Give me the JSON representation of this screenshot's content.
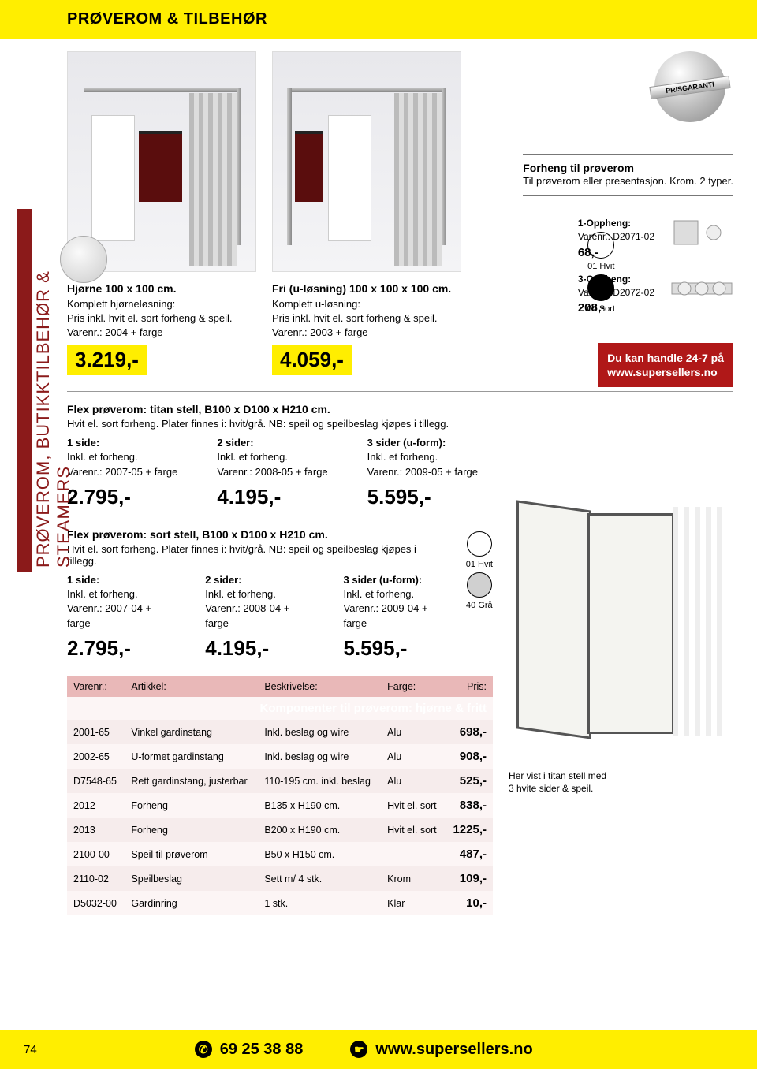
{
  "header": {
    "title": "PRØVEROM & TILBEHØR"
  },
  "sidebar_label": "PRØVEROM, BUTIKKTILBEHØR & STEAMERS",
  "colors": {
    "yellow": "#ffee00",
    "red": "#b01818",
    "darkred": "#8b1a1a",
    "table_header": "#e9b8b8"
  },
  "prisgaranti": "PRISGARANTI",
  "hero": {
    "left": {
      "title": "Hjørne 100 x 100 cm.",
      "line1": "Komplett hjørneløsning:",
      "line2": "Pris inkl. hvit el. sort forheng & speil.",
      "line3": "Varenr.: 2004 + farge",
      "price": "3.219,-"
    },
    "right": {
      "title": "Fri (u-løsning) 100 x 100 x 100 cm.",
      "line1": "Komplett u-løsning:",
      "line2": "Pris inkl. hvit el. sort forheng & speil.",
      "line3": "Varenr.: 2003 + farge",
      "price": "4.059,-"
    }
  },
  "forheng": {
    "title": "Forheng til prøverom",
    "desc": "Til prøverom eller presentasjon. Krom. 2 typer."
  },
  "swatches_top": {
    "a_label": "01 Hvit",
    "b_label": "04 Sort",
    "b_color": "#000000",
    "a_color": "#ffffff"
  },
  "oppheng": {
    "a": {
      "title": "1-Oppheng:",
      "sku": "Varenr.: D2071-02",
      "price": "68,-"
    },
    "b": {
      "title": "3-Oppheng:",
      "sku": "Varenr.: D2072-02",
      "price": "208,-"
    }
  },
  "cta": {
    "line1": "Du kan handle 24-7 på",
    "line2": "www.supersellers.no"
  },
  "flex_titan": {
    "title": "Flex prøverom: titan stell, B100 x D100 x H210 cm.",
    "desc": "Hvit el. sort forheng. Plater finnes i: hvit/grå. NB: speil og speilbeslag kjøpes i tillegg.",
    "cols": [
      {
        "lbl": "1 side:",
        "d1": "Inkl. et forheng.",
        "d2": "Varenr.: 2007-05 + farge",
        "price": "2.795,-"
      },
      {
        "lbl": "2 sider:",
        "d1": "Inkl. et forheng.",
        "d2": "Varenr.: 2008-05 + farge",
        "price": "4.195,-"
      },
      {
        "lbl": "3 sider (u-form):",
        "d1": "Inkl. et forheng.",
        "d2": "Varenr.: 2009-05 + farge",
        "price": "5.595,-"
      }
    ]
  },
  "flex_sort": {
    "title": "Flex prøverom: sort stell, B100 x D100 x H210 cm.",
    "desc": "Hvit el. sort forheng. Plater finnes i: hvit/grå. NB: speil og speilbeslag kjøpes i tillegg.",
    "cols": [
      {
        "lbl": "1 side:",
        "d1": "Inkl. et forheng.",
        "d2": "Varenr.: 2007-04 + farge",
        "price": "2.795,-"
      },
      {
        "lbl": "2 sider:",
        "d1": "Inkl. et forheng.",
        "d2": "Varenr.: 2008-04 + farge",
        "price": "4.195,-"
      },
      {
        "lbl": "3 sider (u-form):",
        "d1": "Inkl. et forheng.",
        "d2": "Varenr.: 2009-04 + farge",
        "price": "5.595,-"
      }
    ],
    "sw": {
      "a_label": "01 Hvit",
      "b_label": "40 Grå",
      "a_color": "#ffffff",
      "b_color": "#d0d0d0"
    }
  },
  "table": {
    "headers": [
      "Varenr.:",
      "Artikkel:",
      "Beskrivelse:",
      "Farge:",
      "Pris:"
    ],
    "section": "Komponenter til prøverom: hjørne & fritt",
    "rows": [
      [
        "2001-65",
        "Vinkel gardinstang",
        "Inkl. beslag og wire",
        "Alu",
        "698,-"
      ],
      [
        "2002-65",
        "U-formet gardinstang",
        "Inkl. beslag og wire",
        "Alu",
        "908,-"
      ],
      [
        "D7548-65",
        "Rett gardinstang, justerbar",
        "110-195 cm. inkl. beslag",
        "Alu",
        "525,-"
      ],
      [
        "2012",
        "Forheng",
        "B135 x H190 cm.",
        "Hvit el. sort",
        "838,-"
      ],
      [
        "2013",
        "Forheng",
        "B200 x H190 cm.",
        "Hvit el. sort",
        "1225,-"
      ],
      [
        "2100-00",
        "Speil til prøverom",
        "B50 x H150 cm.",
        "",
        "487,-"
      ],
      [
        "2110-02",
        "Speilbeslag",
        "Sett m/ 4 stk.",
        "Krom",
        "109,-"
      ],
      [
        "D5032-00",
        "Gardinring",
        "1 stk.",
        "Klar",
        "10,-"
      ]
    ]
  },
  "flexroom_caption": "Her vist i titan stell med\n3 hvite sider & speil.",
  "footer": {
    "page": "74",
    "phone": "69 25 38 88",
    "url": "www.supersellers.no"
  }
}
